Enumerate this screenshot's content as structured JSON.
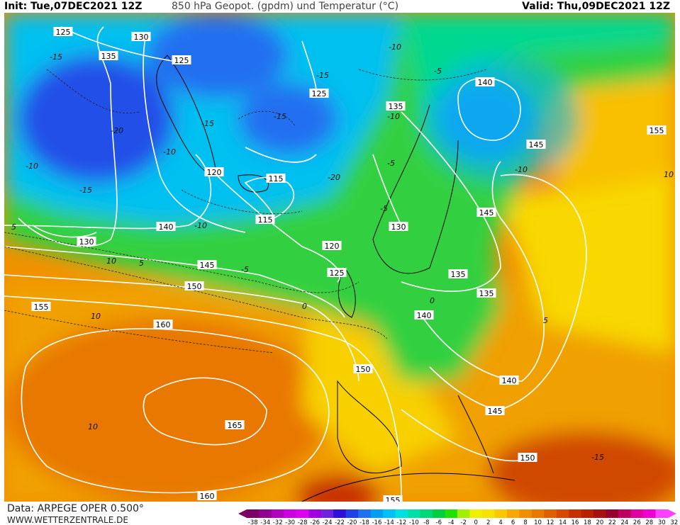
{
  "header": {
    "init": "Init: Tue,07DEC2021 12Z",
    "title": "850 hPa Geopot. (gpdm) und Temperatur (°C)",
    "valid": "Valid: Thu,09DEC2021 12Z"
  },
  "footer": {
    "data_source": "Data: ARPEGE OPER 0.500°",
    "website": "WWW.WETTERZENTRALE.DE"
  },
  "colorbar": {
    "ticks": [
      "-38",
      "-34",
      "-32",
      "-30",
      "-28",
      "-26",
      "-24",
      "-22",
      "-20",
      "-18",
      "-16",
      "-14",
      "-12",
      "-10",
      "-8",
      "-6",
      "-4",
      "-2",
      "0",
      "2",
      "4",
      "6",
      "8",
      "10",
      "12",
      "14",
      "16",
      "18",
      "20",
      "22",
      "24",
      "26",
      "28",
      "30",
      "32"
    ],
    "colors": [
      "#7a0066",
      "#900090",
      "#b000c0",
      "#cc00e0",
      "#e000f0",
      "#a000e0",
      "#7020e0",
      "#3010d8",
      "#2040e8",
      "#2070f0",
      "#00a0f0",
      "#00c0f8",
      "#00e0e0",
      "#00e0a8",
      "#00d878",
      "#00d040",
      "#20e000",
      "#a0f000",
      "#f0f000",
      "#f8e000",
      "#f8c800",
      "#f8a800",
      "#f09000",
      "#e87800",
      "#e06000",
      "#d84800",
      "#c83000",
      "#b82000",
      "#a81010",
      "#980030",
      "#c00060",
      "#e000a0",
      "#f000d0",
      "#ff40ff"
    ]
  },
  "geopotential_labels": [
    "125",
    "130",
    "135",
    "125",
    "140",
    "145",
    "135",
    "125",
    "120",
    "115",
    "115",
    "130",
    "140",
    "145",
    "130",
    "120",
    "125",
    "135",
    "145",
    "150",
    "155",
    "160",
    "140",
    "150",
    "165",
    "140",
    "145",
    "135",
    "160",
    "155",
    "155",
    "150"
  ],
  "temperature_labels": [
    "-15",
    "-20",
    "-15",
    "-10",
    "-15",
    "-10",
    "-5",
    "-10",
    "-15",
    "-20",
    "-15",
    "-10",
    "-5",
    "0",
    "5",
    "10",
    "10",
    "5",
    "0",
    "-5",
    "-10",
    "10",
    "-10",
    "-5",
    "5",
    "10",
    "-15"
  ]
}
